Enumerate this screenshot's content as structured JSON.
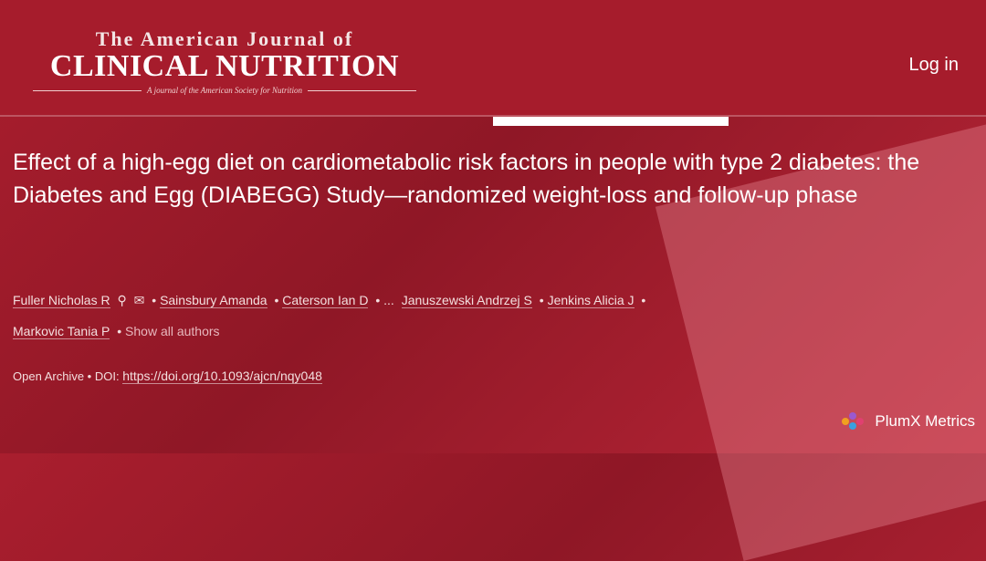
{
  "header": {
    "journal_line1": "The American Journal of",
    "journal_line2": "CLINICAL NUTRITION",
    "journal_tagline": "A journal of the American Society for Nutrition",
    "login": "Log in"
  },
  "article": {
    "title": "Effect of a high-egg diet on cardiometabolic risk factors in people with type 2 diabetes: the Diabetes and Egg (DIABEGG) Study—randomized weight-loss and follow-up phase",
    "authors": [
      "Fuller Nicholas R",
      "Sainsbury Amanda",
      "Caterson Ian D",
      "Januszewski Andrzej S",
      "Jenkins Alicia J",
      "Markovic Tania P"
    ],
    "ellipsis": "...",
    "show_all": "Show all authors",
    "access": "Open Archive",
    "doi_label": "DOI:",
    "doi": "https://doi.org/10.1093/ajcn/nqy048"
  },
  "plumx": "PlumX Metrics"
}
